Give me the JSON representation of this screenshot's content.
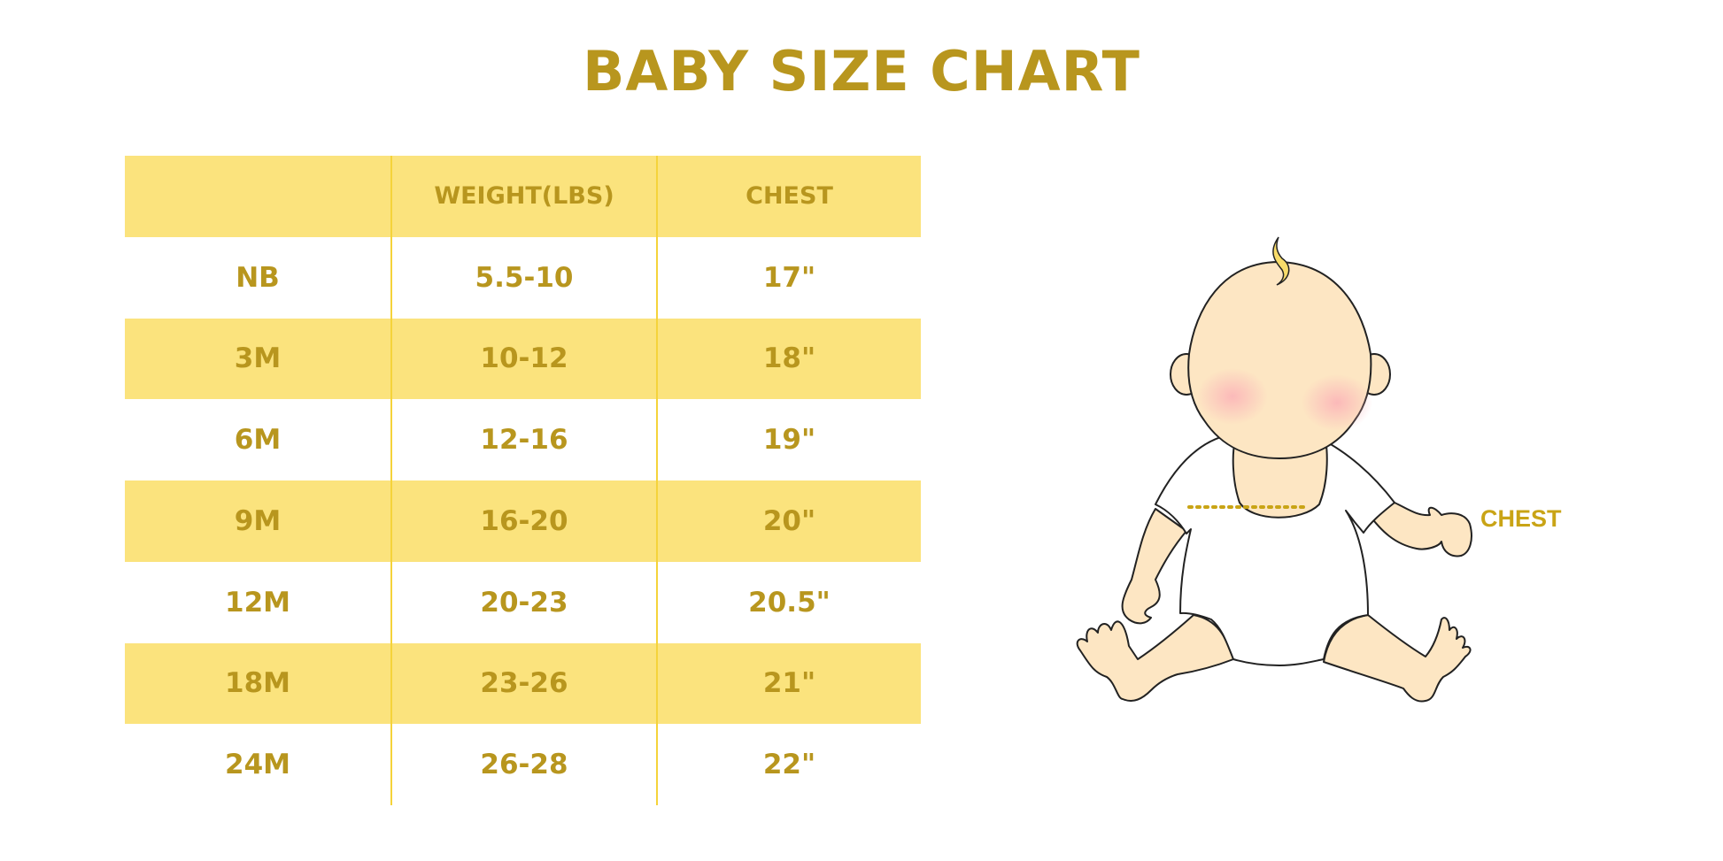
{
  "title": "BABY SIZE CHART",
  "table": {
    "headers": [
      "",
      "WEIGHT(LBS)",
      "CHEST"
    ],
    "rows": [
      [
        "NB",
        "5.5-10",
        "17\""
      ],
      [
        "3M",
        "10-12",
        "18\""
      ],
      [
        "6M",
        "12-16",
        "19\""
      ],
      [
        "9M",
        "16-20",
        "20\""
      ],
      [
        "12M",
        "20-23",
        "20.5\""
      ],
      [
        "18M",
        "23-26",
        "21\""
      ],
      [
        "24M",
        "26-28",
        "22\""
      ]
    ]
  },
  "illustration": {
    "label": "CHEST"
  },
  "colors": {
    "text_gold": "#B8961E",
    "row_yellow": "#FBE37D",
    "divider": "#F5D33A",
    "skin": "#FDE6C3"
  }
}
